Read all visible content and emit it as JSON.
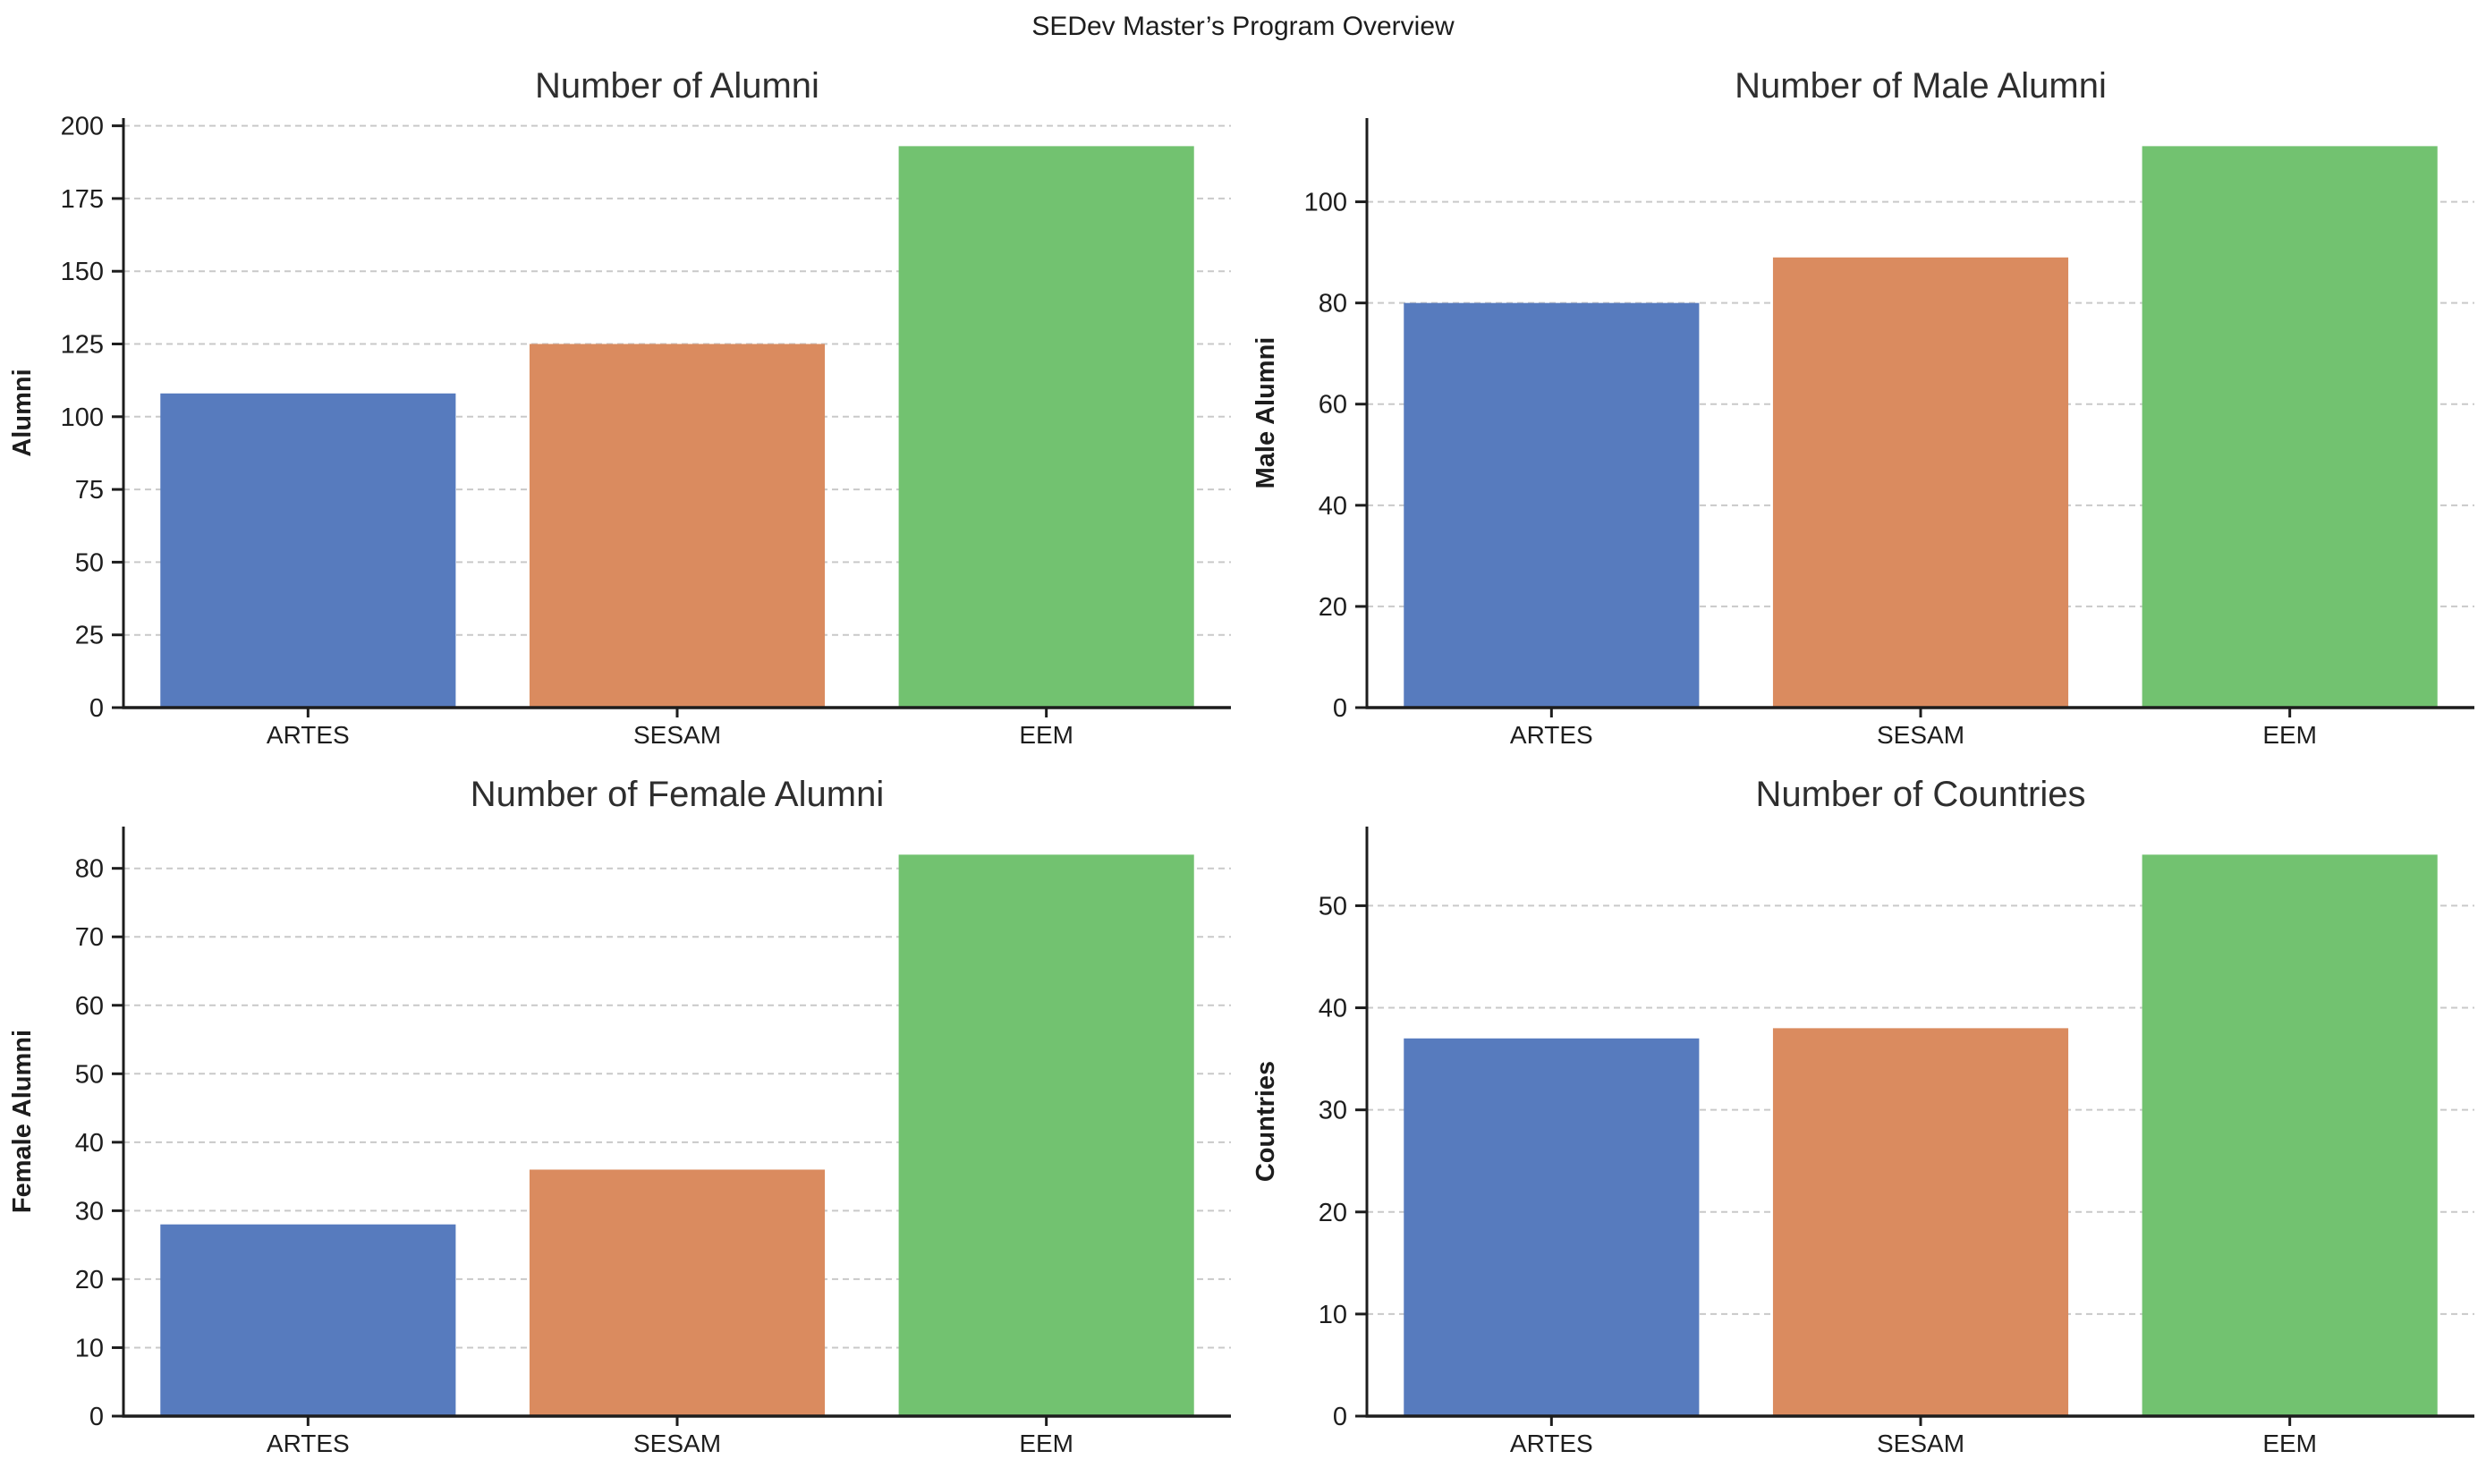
{
  "suptitle": "SEDev Master’s Program Overview",
  "palette": {
    "bar_colors": [
      "#577BBE",
      "#DA8B5F",
      "#72C270"
    ],
    "grid_color": "#c9c9c9",
    "axis_color": "#1d1d1d",
    "tick_label_color": "#1d1d1d",
    "title_color": "#2e2e2e"
  },
  "chart_data": [
    {
      "type": "bar",
      "title": "Number of Alumni",
      "ylabel": "Alumni",
      "xlabel": "",
      "categories": [
        "ARTES",
        "SESAM",
        "EEM"
      ],
      "values": [
        108,
        125,
        193
      ],
      "yticks": [
        0,
        25,
        50,
        75,
        100,
        125,
        150,
        175,
        200
      ],
      "ylim": [
        0,
        202.65
      ],
      "grid": "dashed horizontal",
      "legend": "none"
    },
    {
      "type": "bar",
      "title": "Number of Male Alumni",
      "ylabel": "Male Alumni",
      "xlabel": "",
      "categories": [
        "ARTES",
        "SESAM",
        "EEM"
      ],
      "values": [
        80,
        89,
        111
      ],
      "yticks": [
        0,
        20,
        40,
        60,
        80,
        100
      ],
      "ylim": [
        0,
        116.55
      ],
      "grid": "dashed horizontal",
      "legend": "none"
    },
    {
      "type": "bar",
      "title": "Number of Female Alumni",
      "ylabel": "Female Alumni",
      "xlabel": "",
      "categories": [
        "ARTES",
        "SESAM",
        "EEM"
      ],
      "values": [
        28,
        36,
        82
      ],
      "yticks": [
        0,
        10,
        20,
        30,
        40,
        50,
        60,
        70,
        80
      ],
      "ylim": [
        0,
        86.1
      ],
      "grid": "dashed horizontal",
      "legend": "none"
    },
    {
      "type": "bar",
      "title": "Number of Countries",
      "ylabel": "Countries",
      "xlabel": "",
      "categories": [
        "ARTES",
        "SESAM",
        "EEM"
      ],
      "values": [
        37,
        38,
        55
      ],
      "yticks": [
        0,
        10,
        20,
        30,
        40,
        50
      ],
      "ylim": [
        0,
        57.75
      ],
      "grid": "dashed horizontal",
      "legend": "none"
    }
  ]
}
